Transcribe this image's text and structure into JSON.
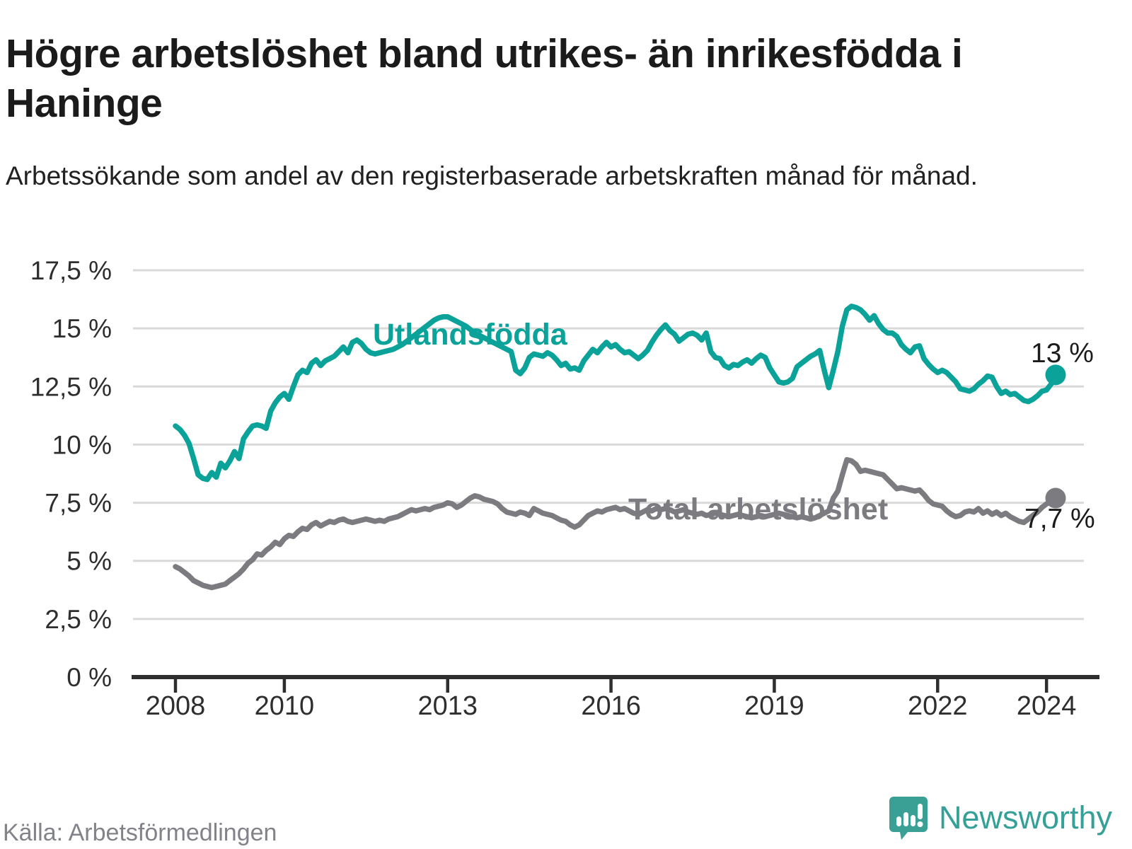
{
  "header": {
    "title": "Högre arbetslöshet bland utrikes- än inrikesfödda i Haninge",
    "subtitle": "Arbetssökande som andel av den registerbaserade arbetskraften månad för månad."
  },
  "footer": {
    "source": "Källa: Arbetsförmedlingen",
    "brand_name": "Newsworthy"
  },
  "colors": {
    "series_foreign_born": "#0aa299",
    "series_total": "#7b7b80",
    "end_label_text": "#1b1b1b",
    "gridline": "#d9d9d9",
    "axis": "#2e2e2e",
    "tick_label": "#2e2e2e",
    "brand_teal": "#3aa096"
  },
  "chart_data": {
    "type": "line",
    "title": "Högre arbetslöshet bland utrikes- än inrikesfödda i Haninge",
    "x_start": "2008-01",
    "x_end": "2024-03",
    "x_interval": "monthly",
    "x_ticks": [
      2008,
      2010,
      2013,
      2016,
      2019,
      2022,
      2024
    ],
    "y_ticks": [
      {
        "value": 0,
        "label": "0 %"
      },
      {
        "value": 2.5,
        "label": "2,5 %"
      },
      {
        "value": 5,
        "label": "5 %"
      },
      {
        "value": 7.5,
        "label": "7,5 %"
      },
      {
        "value": 10,
        "label": "10 %"
      },
      {
        "value": 12.5,
        "label": "12,5 %"
      },
      {
        "value": 15,
        "label": "15 %"
      },
      {
        "value": 17.5,
        "label": "17,5 %"
      }
    ],
    "ylim": [
      0,
      17.5
    ],
    "grid": "horizontal",
    "legend_position": "inline-labels",
    "series": [
      {
        "name": "Utlandsfödda",
        "color": "#0aa299",
        "end_label": "13 %",
        "end_value": 13.0,
        "values": [
          10.8,
          10.65,
          10.4,
          10.05,
          9.4,
          8.7,
          8.55,
          8.5,
          8.8,
          8.6,
          9.2,
          9.0,
          9.3,
          9.7,
          9.4,
          10.25,
          10.55,
          10.8,
          10.85,
          10.8,
          10.7,
          11.45,
          11.8,
          12.05,
          12.2,
          11.95,
          12.5,
          13.0,
          13.2,
          13.1,
          13.5,
          13.65,
          13.4,
          13.6,
          13.7,
          13.8,
          14.0,
          14.2,
          13.95,
          14.4,
          14.5,
          14.35,
          14.1,
          13.95,
          13.9,
          13.95,
          14.0,
          14.05,
          14.1,
          14.2,
          14.3,
          14.45,
          14.6,
          14.75,
          14.9,
          15.05,
          15.2,
          15.35,
          15.45,
          15.5,
          15.5,
          15.4,
          15.3,
          15.2,
          15.1,
          14.95,
          14.8,
          14.7,
          14.6,
          14.5,
          14.4,
          14.3,
          14.2,
          14.1,
          14.0,
          13.2,
          13.05,
          13.3,
          13.75,
          13.9,
          13.85,
          13.8,
          13.95,
          13.85,
          13.65,
          13.4,
          13.5,
          13.25,
          13.3,
          13.2,
          13.6,
          13.85,
          14.1,
          13.95,
          14.2,
          14.4,
          14.2,
          14.3,
          14.1,
          13.95,
          14.0,
          13.85,
          13.7,
          13.85,
          14.05,
          14.4,
          14.7,
          14.95,
          15.15,
          14.9,
          14.75,
          14.45,
          14.6,
          14.75,
          14.8,
          14.7,
          14.5,
          14.8,
          14.0,
          13.75,
          13.7,
          13.4,
          13.3,
          13.45,
          13.4,
          13.55,
          13.65,
          13.5,
          13.7,
          13.85,
          13.75,
          13.3,
          13.0,
          12.7,
          12.65,
          12.7,
          12.85,
          13.35,
          13.5,
          13.65,
          13.8,
          13.9,
          14.05,
          13.2,
          12.45,
          13.2,
          14.0,
          15.1,
          15.8,
          15.95,
          15.9,
          15.8,
          15.6,
          15.35,
          15.55,
          15.2,
          14.95,
          14.8,
          14.8,
          14.65,
          14.3,
          14.1,
          13.95,
          14.2,
          14.25,
          13.7,
          13.45,
          13.25,
          13.1,
          13.2,
          13.1,
          12.9,
          12.7,
          12.4,
          12.35,
          12.3,
          12.4,
          12.6,
          12.75,
          12.95,
          12.9,
          12.5,
          12.2,
          12.3,
          12.15,
          12.2,
          12.05,
          11.9,
          11.85,
          11.95,
          12.1,
          12.3,
          12.35,
          12.6,
          13.0
        ]
      },
      {
        "name": "Total arbetslöshet",
        "color": "#7b7b80",
        "end_label": "7,7 %",
        "end_value": 7.7,
        "values": [
          4.75,
          4.65,
          4.5,
          4.35,
          4.15,
          4.05,
          3.95,
          3.9,
          3.85,
          3.9,
          3.95,
          4.0,
          4.15,
          4.3,
          4.45,
          4.65,
          4.9,
          5.05,
          5.3,
          5.25,
          5.45,
          5.6,
          5.8,
          5.7,
          5.95,
          6.1,
          6.05,
          6.25,
          6.4,
          6.35,
          6.55,
          6.65,
          6.5,
          6.6,
          6.7,
          6.65,
          6.75,
          6.8,
          6.7,
          6.65,
          6.7,
          6.75,
          6.8,
          6.75,
          6.7,
          6.75,
          6.7,
          6.8,
          6.85,
          6.9,
          7.0,
          7.1,
          7.2,
          7.15,
          7.2,
          7.25,
          7.2,
          7.3,
          7.35,
          7.4,
          7.5,
          7.45,
          7.3,
          7.4,
          7.55,
          7.7,
          7.8,
          7.75,
          7.65,
          7.6,
          7.55,
          7.45,
          7.25,
          7.1,
          7.05,
          7.0,
          7.1,
          7.05,
          6.95,
          7.25,
          7.15,
          7.05,
          7.0,
          6.95,
          6.85,
          6.75,
          6.7,
          6.55,
          6.45,
          6.55,
          6.75,
          6.95,
          7.05,
          7.15,
          7.1,
          7.2,
          7.25,
          7.3,
          7.2,
          7.25,
          7.15,
          7.05,
          7.0,
          7.1,
          7.2,
          7.15,
          7.25,
          7.2,
          7.25,
          7.2,
          7.1,
          7.15,
          7.2,
          7.1,
          7.05,
          7.0,
          7.05,
          6.95,
          7.0,
          7.05,
          7.0,
          6.95,
          6.9,
          6.95,
          7.0,
          6.95,
          6.9,
          6.85,
          6.9,
          6.95,
          6.9,
          6.95,
          7.0,
          7.05,
          7.0,
          6.95,
          6.9,
          6.85,
          6.9,
          6.85,
          6.8,
          6.85,
          6.95,
          7.05,
          7.15,
          7.7,
          8.0,
          8.7,
          9.35,
          9.3,
          9.15,
          8.85,
          8.9,
          8.85,
          8.8,
          8.75,
          8.7,
          8.5,
          8.3,
          8.1,
          8.15,
          8.1,
          8.05,
          8.0,
          8.05,
          7.85,
          7.6,
          7.45,
          7.4,
          7.35,
          7.15,
          7.0,
          6.9,
          6.95,
          7.1,
          7.15,
          7.1,
          7.25,
          7.05,
          7.15,
          7.0,
          7.1,
          6.95,
          7.05,
          6.9,
          6.8,
          6.7,
          6.65,
          6.8,
          6.95,
          7.1,
          7.3,
          7.45,
          7.55,
          7.7
        ]
      }
    ]
  }
}
